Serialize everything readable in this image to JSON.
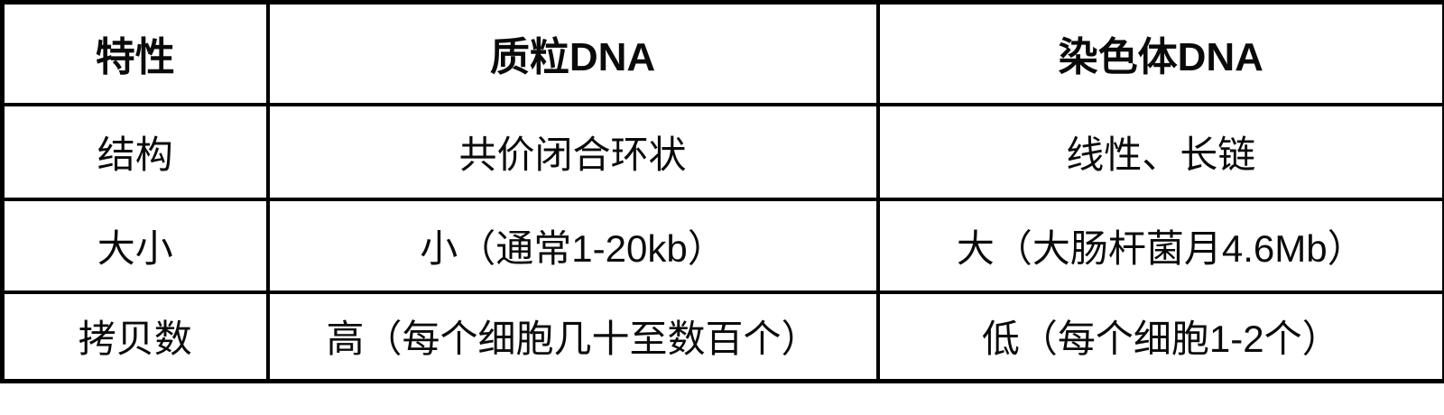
{
  "table": {
    "title_semantic": "plasmid-vs-chromosomal-dna-comparison",
    "colors": {
      "border": "#000000",
      "text": "#0a0a0a",
      "background": "#ffffff"
    },
    "columns": [
      "特性",
      "质粒DNA",
      "染色体DNA"
    ],
    "rows": [
      {
        "feature": "结构",
        "plasmid": "共价闭合环状",
        "chromosome": "线性、长链"
      },
      {
        "feature": "大小",
        "plasmid": "小（通常1-20kb）",
        "chromosome": "大（大肠杆菌月4.6Mb）"
      },
      {
        "feature": "拷贝数",
        "plasmid": "高（每个细胞几十至数百个）",
        "chromosome": "低（每个细胞1-2个）"
      }
    ]
  }
}
